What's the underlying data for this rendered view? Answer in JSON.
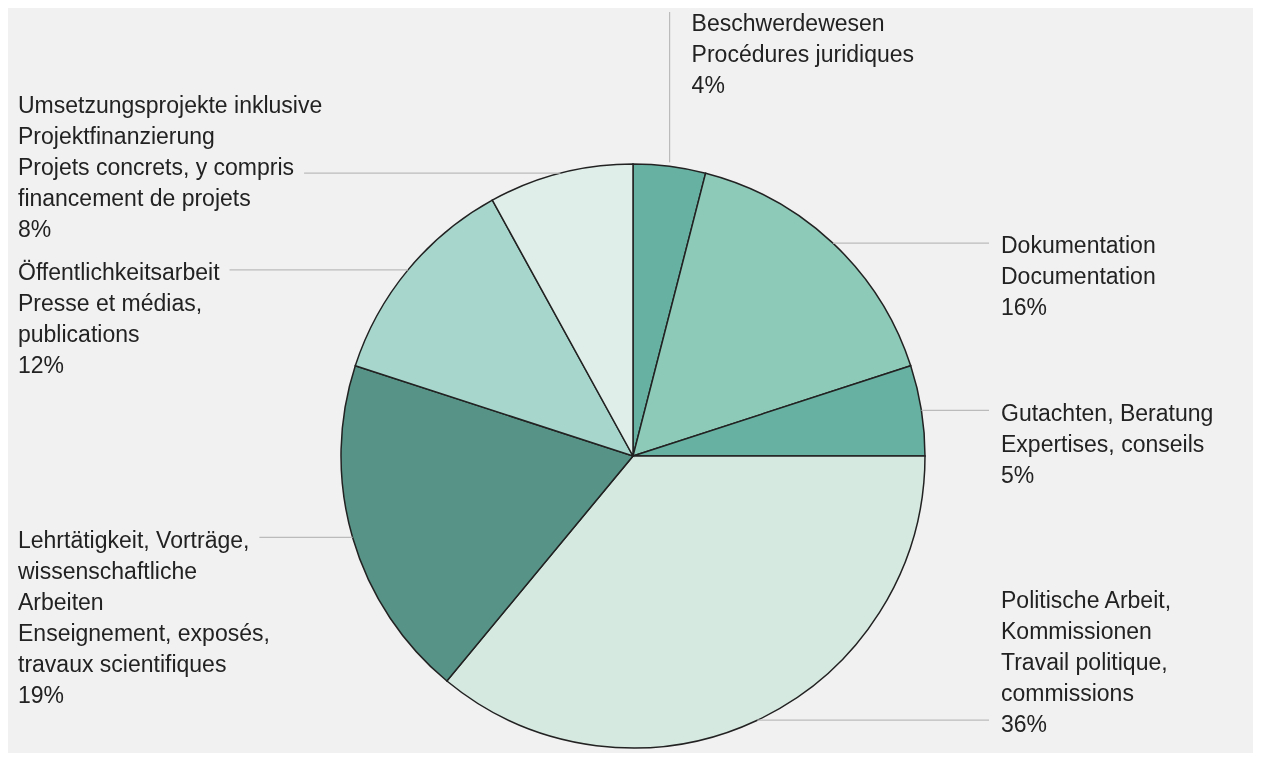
{
  "chart_data": {
    "type": "pie",
    "categories": [
      "Beschwerdewesen\nProcédures juridiques",
      "Dokumentation\nDocumentation",
      "Gutachten, Beratung\nExpertises, conseils",
      "Politische Arbeit,\nKommissionen\nTravail politique,\ncommissions",
      "Lehrtätigkeit, Vorträge,\nwissenschaftliche\nArbeiten\nEnseignement, exposés,\ntravaux scientifiques",
      "Öffentlichkeitsarbeit\nPresse et médias,\npublications",
      "Umsetzungsprojekte inklusive\nProjektfinanzierung\nProjets concrets, y compris\nfinancement de projets"
    ],
    "values": [
      4,
      16,
      5,
      36,
      19,
      12,
      8
    ],
    "value_labels": [
      "4%",
      "16%",
      "5%",
      "36%",
      "19%",
      "12%",
      "8%"
    ],
    "colors": [
      "#67b1a2",
      "#8ecab8",
      "#67b1a2",
      "#d6e9e0",
      "#579386",
      "#a7d6cc",
      "#e0eee9"
    ]
  }
}
